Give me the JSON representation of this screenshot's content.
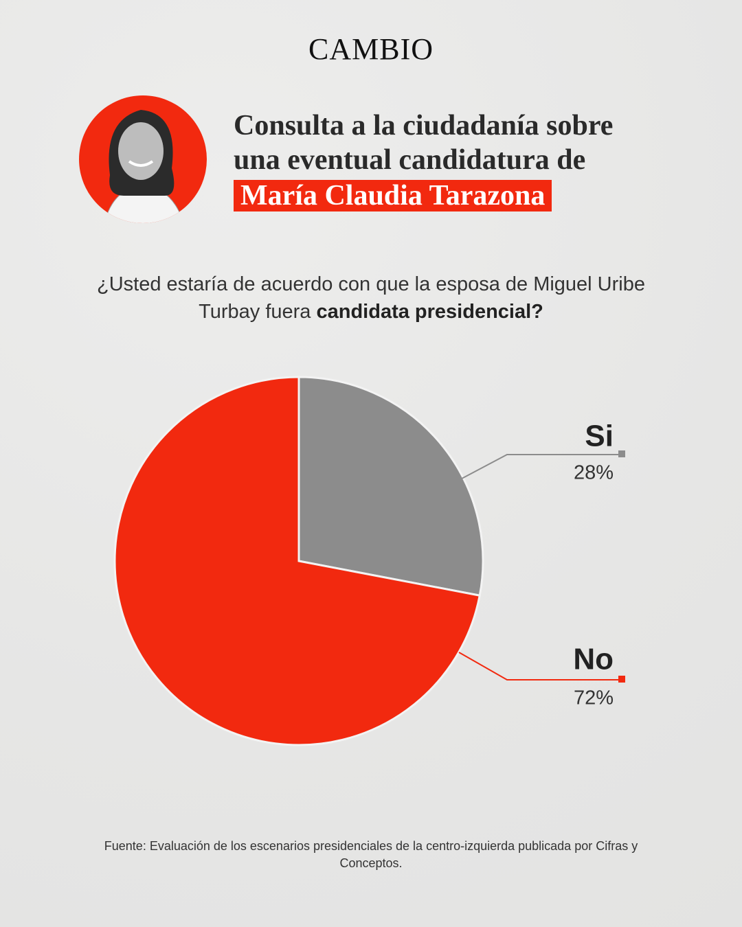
{
  "brand": "CAMBIO",
  "title_lines": [
    "Consulta a la ciudadanía sobre",
    "una eventual candidatura de"
  ],
  "title_highlight": "María Claudia Tarazona",
  "question": "¿Usted estaría de acuerdo con que la esposa de Miguel Uribe Turbay fuera",
  "question_emphasis": "candidata presidencial?",
  "source": "Fuente: Evaluación de los escenarios presidenciales de la centro-izquierda publicada por Cifras y Conceptos.",
  "chart_data": {
    "type": "pie",
    "categories": [
      "Si",
      "No"
    ],
    "values": [
      28,
      72
    ],
    "value_labels": [
      "28%",
      "72%"
    ],
    "colors": [
      "#8c8c8c",
      "#f2290f"
    ]
  }
}
